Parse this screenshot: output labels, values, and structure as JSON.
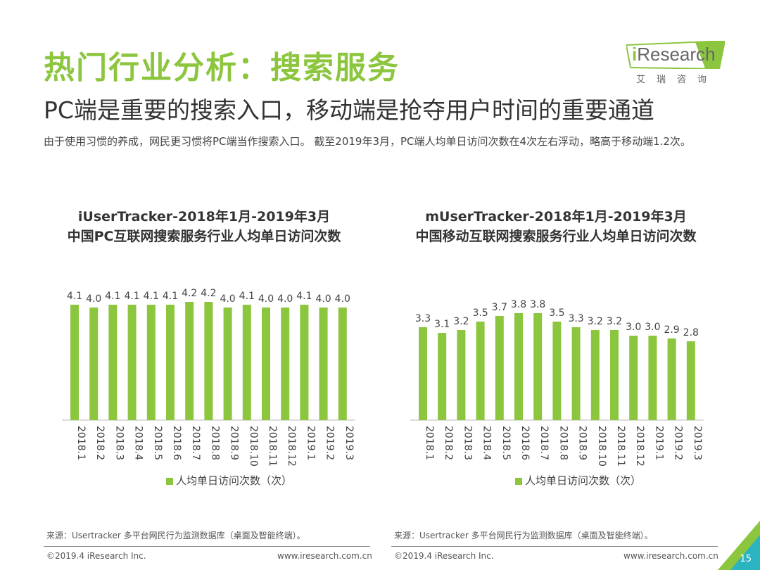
{
  "header": {
    "title": "热门行业分析：搜索服务",
    "subtitle": "PC端是重要的搜索入口，移动端是抢夺用户时间的重要通道",
    "description": "由于使用习惯的养成，网民更习惯将PC端当作搜索入口。 截至2019年3月，PC端人均单日访问次数在4次左右浮动，略高于移动端1.2次。"
  },
  "logo": {
    "i": "i",
    "name": "Research",
    "sub": "艾瑞咨询"
  },
  "colors": {
    "accent": "#8cc63e",
    "bar": "#8cc63e"
  },
  "chart_data": [
    {
      "type": "bar",
      "title": [
        "iUserTracker-2018年1月-2019年3月",
        "中国PC互联网搜索服务行业人均单日访问次数"
      ],
      "categories": [
        "2018.1",
        "2018.2",
        "2018.3",
        "2018.4",
        "2018.5",
        "2018.6",
        "2018.7",
        "2018.8",
        "2018.9",
        "2018.10",
        "2018.11",
        "2018.12",
        "2019.1",
        "2019.2",
        "2019.3"
      ],
      "series": [
        {
          "name": "人均单日访问次数（次）",
          "values": [
            4.1,
            4.0,
            4.1,
            4.1,
            4.1,
            4.1,
            4.2,
            4.2,
            4.0,
            4.1,
            4.0,
            4.0,
            4.1,
            4.0,
            4.0
          ]
        }
      ],
      "grid": false,
      "legend": "bottom-center"
    },
    {
      "type": "bar",
      "title": [
        "mUserTracker-2018年1月-2019年3月",
        "中国移动互联网搜索服务行业人均单日访问次数"
      ],
      "categories": [
        "2018.1",
        "2018.2",
        "2018.3",
        "2018.4",
        "2018.5",
        "2018.6",
        "2018.7",
        "2018.8",
        "2018.9",
        "2018.10",
        "2018.11",
        "2018.12",
        "2019.1",
        "2019.2",
        "2019.3"
      ],
      "series": [
        {
          "name": "人均单日访问次数（次）",
          "values": [
            3.3,
            3.1,
            3.2,
            3.5,
            3.7,
            3.8,
            3.8,
            3.5,
            3.3,
            3.2,
            3.2,
            3.0,
            3.0,
            2.9,
            2.8
          ]
        }
      ],
      "grid": false,
      "legend": "bottom-center"
    }
  ],
  "sources": [
    "来源：Usertracker 多平台网民行为监测数据库（桌面及智能终端）。",
    "来源：Usertracker 多平台网民行为监测数据库（桌面及智能终端）。"
  ],
  "footer": {
    "copyright": "©2019.4 iResearch Inc.",
    "website": "www.iresearch.com.cn",
    "page": "15"
  }
}
